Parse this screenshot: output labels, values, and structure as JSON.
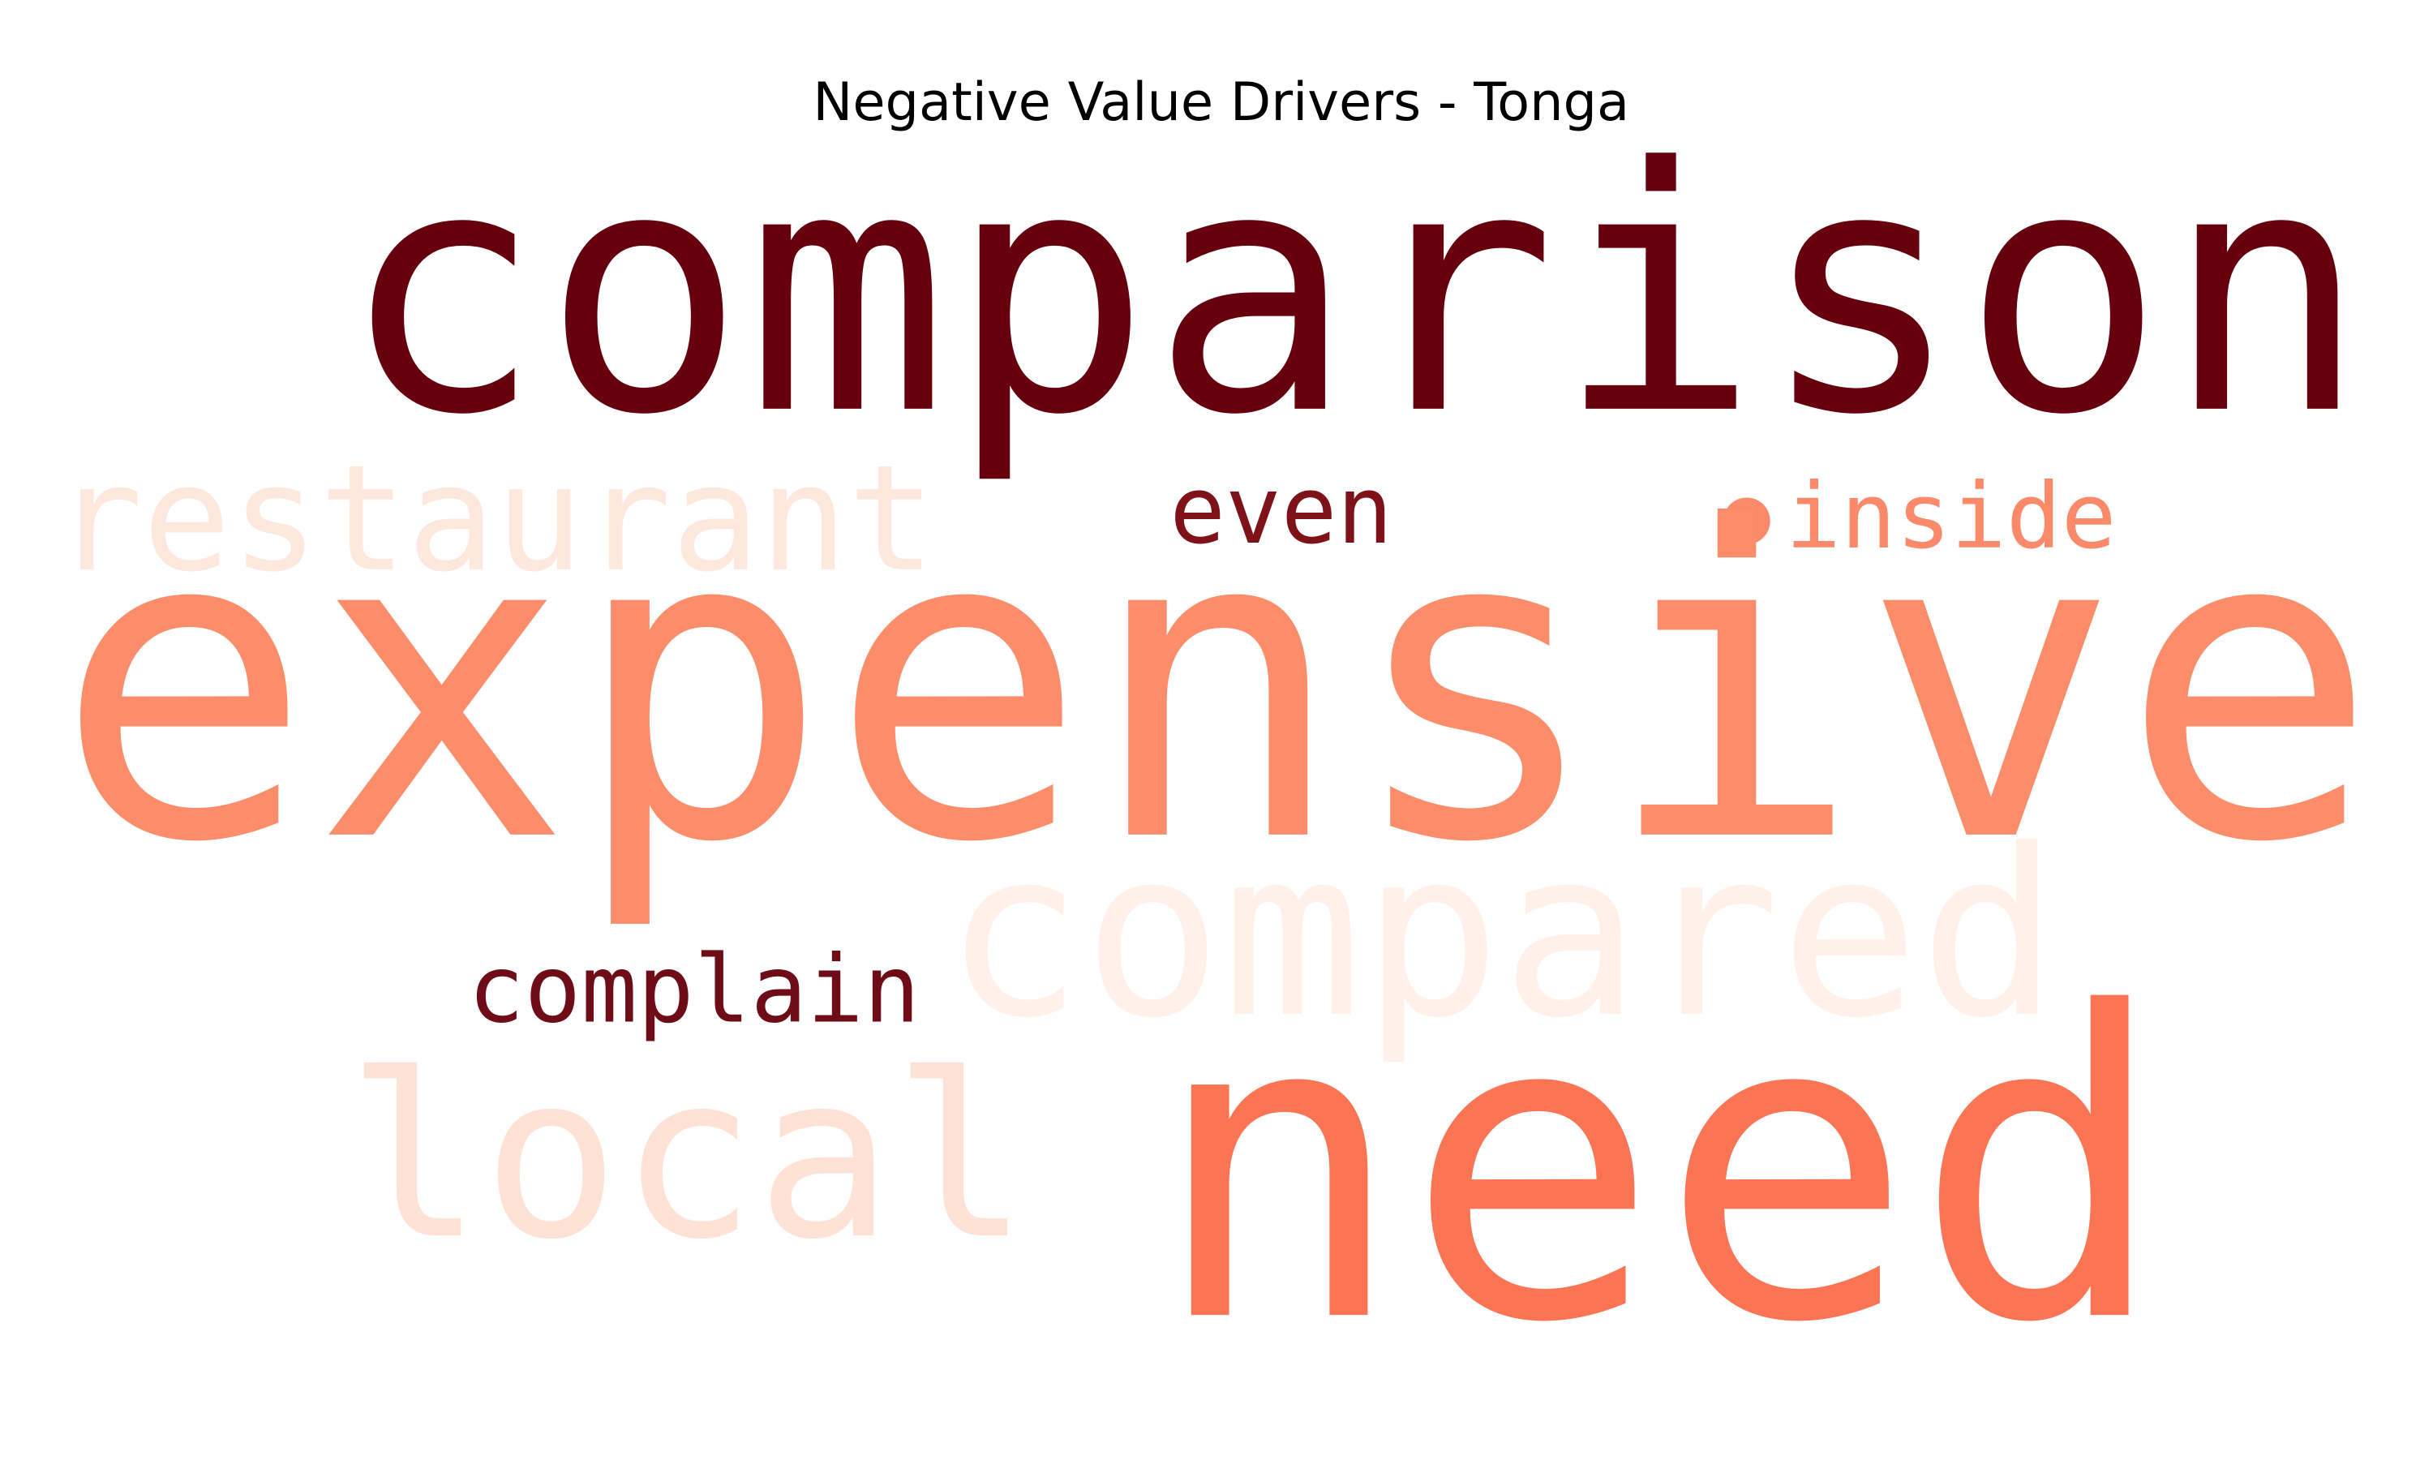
{
  "chart_data": {
    "type": "wordcloud",
    "title": "Negative Value Drivers - Tonga",
    "words": [
      {
        "text": "comparison",
        "color": "#67000d"
      },
      {
        "text": "restaurant",
        "color": "#fee8dd"
      },
      {
        "text": "even",
        "color": "#7f1118"
      },
      {
        "text": "inside",
        "color": "#fb8a6a"
      },
      {
        "text": "expensive",
        "color": "#fc8d6b"
      },
      {
        "text": "compared",
        "color": "#fff0e9"
      },
      {
        "text": "complain",
        "color": "#6e0d17"
      },
      {
        "text": "local",
        "color": "#fee2d5"
      },
      {
        "text": "need",
        "color": "#fb7454"
      }
    ]
  }
}
